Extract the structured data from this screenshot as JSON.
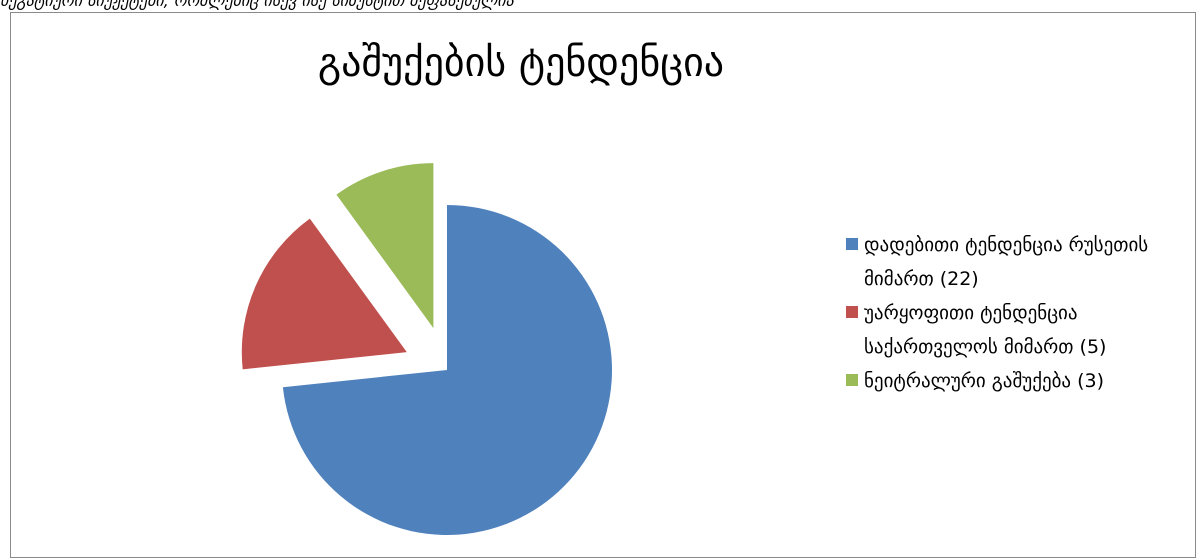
{
  "page": {
    "top_text": "ნეგატიური სიუჟეტები, რომლებიც ისევ ისე სიზუსტით შეფასებულია"
  },
  "chart_data": {
    "type": "pie",
    "title": "გაშუქების ტენდენცია",
    "legend_position": "right",
    "slices": [
      {
        "label": "დადებითი ტენდენცია რუსეთის მიმართ (22)",
        "value": 22,
        "color": "#4F81BD",
        "exploded": false
      },
      {
        "label": "უარყოფითი ტენდენცია საქართველოს მიმართ (5)",
        "value": 5,
        "color": "#C0504D",
        "exploded": true
      },
      {
        "label": "ნეიტრალური გაშუქება (3)",
        "value": 3,
        "color": "#9BBB59",
        "exploded": true
      }
    ]
  }
}
